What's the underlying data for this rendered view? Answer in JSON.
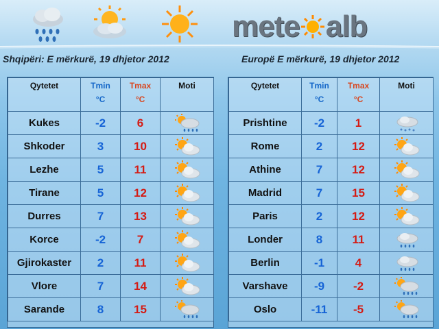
{
  "brand": {
    "prefix": "mete",
    "suffix": "alb"
  },
  "albania": {
    "date_label": "Shqipëri: E mërkurë, 19 dhjetor 2012",
    "headers": {
      "city": "Qytetet",
      "tmin": "Tmin",
      "tmax": "Tmax",
      "unit": "°C",
      "weather": "Moti"
    },
    "rows": [
      {
        "city": "Kukes",
        "tmin": "-2",
        "tmax": "6",
        "icon": "sun-cloud-rain-icon"
      },
      {
        "city": "Shkoder",
        "tmin": "3",
        "tmax": "10",
        "icon": "sun-cloud-icon"
      },
      {
        "city": "Lezhe",
        "tmin": "5",
        "tmax": "11",
        "icon": "sun-cloud-icon"
      },
      {
        "city": "Tirane",
        "tmin": "5",
        "tmax": "12",
        "icon": "sun-cloud-icon"
      },
      {
        "city": "Durres",
        "tmin": "7",
        "tmax": "13",
        "icon": "sun-cloud-icon"
      },
      {
        "city": "Korce",
        "tmin": "-2",
        "tmax": "7",
        "icon": "sun-cloud-icon"
      },
      {
        "city": "Gjirokaster",
        "tmin": "2",
        "tmax": "11",
        "icon": "sun-cloud-icon"
      },
      {
        "city": "Vlore",
        "tmin": "7",
        "tmax": "14",
        "icon": "sun-cloud-icon"
      },
      {
        "city": "Sarande",
        "tmin": "8",
        "tmax": "15",
        "icon": "sun-cloud-rain-icon"
      }
    ]
  },
  "europe": {
    "date_label": "Europë E mërkurë, 19 dhjetor 2012",
    "headers": {
      "city": "Qytetet",
      "tmin": "Tmin",
      "tmax": "Tmax",
      "unit": "°C",
      "weather": "Moti"
    },
    "rows": [
      {
        "city": "Prishtine",
        "tmin": "-2",
        "tmax": "1",
        "icon": "cloud-snow-icon"
      },
      {
        "city": "Rome",
        "tmin": "2",
        "tmax": "12",
        "icon": "sun-cloud-icon"
      },
      {
        "city": "Athine",
        "tmin": "7",
        "tmax": "12",
        "icon": "sun-cloud-icon"
      },
      {
        "city": "Madrid",
        "tmin": "7",
        "tmax": "15",
        "icon": "sun-cloud-icon"
      },
      {
        "city": "Paris",
        "tmin": "2",
        "tmax": "12",
        "icon": "sun-cloud-icon"
      },
      {
        "city": "Londer",
        "tmin": "8",
        "tmax": "11",
        "icon": "cloud-rain-icon"
      },
      {
        "city": "Berlin",
        "tmin": "-1",
        "tmax": "4",
        "icon": "cloud-rain-icon"
      },
      {
        "city": "Varshave",
        "tmin": "-9",
        "tmax": "-2",
        "icon": "sun-cloud-rain-icon"
      },
      {
        "city": "Oslo",
        "tmin": "-11",
        "tmax": "-5",
        "icon": "sun-cloud-rain-icon"
      }
    ]
  },
  "colors": {
    "tmin": "#1563d6",
    "tmax": "#d41b14",
    "border": "#3a6c98"
  }
}
